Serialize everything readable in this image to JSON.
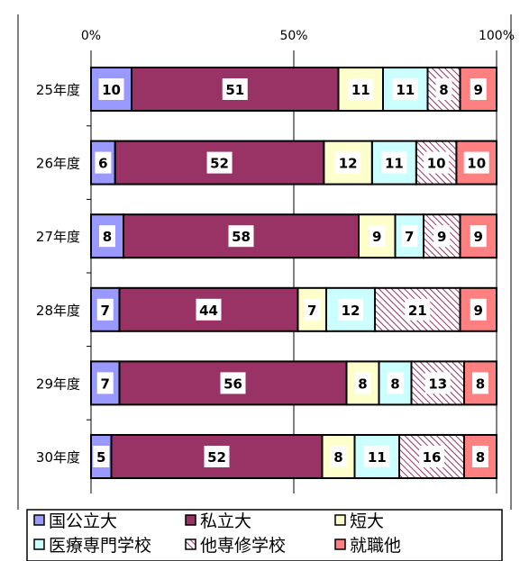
{
  "chart_data": {
    "type": "bar",
    "orientation": "horizontal",
    "stacked": "percent",
    "categories": [
      "25年度",
      "26年度",
      "27年度",
      "28年度",
      "29年度",
      "30年度"
    ],
    "series": [
      {
        "name": "国公立大",
        "values": [
          10,
          6,
          8,
          7,
          7,
          5
        ],
        "color": "#9999ff"
      },
      {
        "name": "私立大",
        "values": [
          51,
          52,
          58,
          44,
          56,
          52
        ],
        "color": "#993366"
      },
      {
        "name": "短大",
        "values": [
          11,
          12,
          9,
          7,
          8,
          8
        ],
        "color": "#ffffcc"
      },
      {
        "name": "医療専門学校",
        "values": [
          11,
          11,
          7,
          12,
          8,
          11
        ],
        "color": "#ccffff"
      },
      {
        "name": "他専修学校",
        "values": [
          8,
          10,
          9,
          21,
          13,
          16
        ],
        "color": "#993366",
        "pattern": "hatch"
      },
      {
        "name": "就職他",
        "values": [
          9,
          10,
          9,
          9,
          8,
          8
        ],
        "color": "#ff8080"
      }
    ],
    "x_ticks": [
      "0%",
      "50%",
      "100%"
    ],
    "xlim": [
      0,
      100
    ],
    "grid": true,
    "legend": "bottom"
  }
}
